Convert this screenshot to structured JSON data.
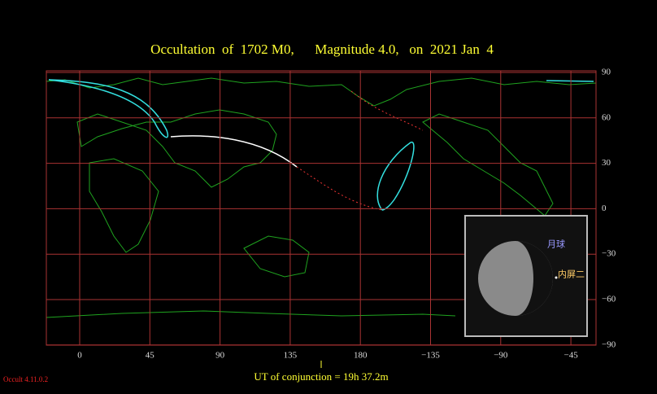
{
  "header": {
    "title": "Occultation  of  1702 M0,      Magnitude 4.0,   on  2021 Jan  4"
  },
  "axes": {
    "longitude_labels": [
      "0",
      "45",
      "90",
      "135",
      "180",
      "−135",
      "−90",
      "−45"
    ],
    "latitude_labels": [
      "90",
      "60",
      "30",
      "0",
      "−30",
      "−60",
      "−90"
    ]
  },
  "inset": {
    "labels": [
      "月球",
      "内屏二"
    ]
  },
  "footer": {
    "conjunction": "UT of conjunction = 19h 37.2m",
    "version": "Occult 4.11.0.2"
  }
}
